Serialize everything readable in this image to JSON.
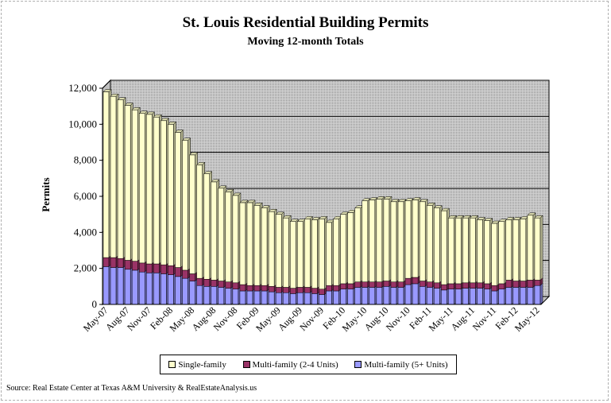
{
  "chart_data": {
    "type": "bar",
    "stacked": true,
    "title": "St. Louis Residential Building Permits",
    "subtitle": "Moving 12-month Totals",
    "ylabel": "Permits",
    "ylim": [
      0,
      12000
    ],
    "yticks": [
      0,
      2000,
      4000,
      6000,
      8000,
      10000,
      12000
    ],
    "ytick_labels": [
      "0",
      "2,000",
      "4,000",
      "6,000",
      "8,000",
      "10,000",
      "12,000"
    ],
    "xtick_labels": [
      "May-07",
      "Aug-07",
      "Nov-07",
      "Feb-08",
      "May-08",
      "Aug-08",
      "Nov-08",
      "Feb-09",
      "May-09",
      "Aug-09",
      "Nov-09",
      "Feb-10",
      "May-10",
      "Aug-10",
      "Nov-10",
      "Feb-11",
      "May-11",
      "Aug-11",
      "Nov-11",
      "Feb-12",
      "May-12"
    ],
    "categories": [
      "May-07",
      "Jun-07",
      "Jul-07",
      "Aug-07",
      "Sep-07",
      "Oct-07",
      "Nov-07",
      "Dec-07",
      "Jan-08",
      "Feb-08",
      "Mar-08",
      "Apr-08",
      "May-08",
      "Jun-08",
      "Jul-08",
      "Aug-08",
      "Sep-08",
      "Oct-08",
      "Nov-08",
      "Dec-08",
      "Jan-09",
      "Feb-09",
      "Mar-09",
      "Apr-09",
      "May-09",
      "Jun-09",
      "Jul-09",
      "Aug-09",
      "Sep-09",
      "Oct-09",
      "Nov-09",
      "Dec-09",
      "Jan-10",
      "Feb-10",
      "Mar-10",
      "Apr-10",
      "May-10",
      "Jun-10",
      "Jul-10",
      "Aug-10",
      "Sep-10",
      "Oct-10",
      "Nov-10",
      "Dec-10",
      "Jan-11",
      "Feb-11",
      "Mar-11",
      "Apr-11",
      "May-11",
      "Jun-11",
      "Jul-11",
      "Aug-11",
      "Sep-11",
      "Oct-11",
      "Nov-11",
      "Dec-11",
      "Jan-12",
      "Feb-12",
      "Mar-12",
      "Apr-12",
      "May-12"
    ],
    "series": [
      {
        "name": "Multi-family (5+ Units)",
        "color": "#9999ff",
        "values": [
          2100,
          2050,
          2050,
          1950,
          1900,
          1800,
          1750,
          1750,
          1700,
          1650,
          1550,
          1450,
          1300,
          1050,
          1000,
          1000,
          950,
          900,
          850,
          750,
          750,
          750,
          750,
          700,
          650,
          650,
          600,
          650,
          650,
          600,
          550,
          750,
          750,
          850,
          850,
          950,
          950,
          950,
          950,
          1000,
          950,
          950,
          1100,
          1150,
          1000,
          950,
          900,
          800,
          850,
          850,
          900,
          900,
          900,
          850,
          750,
          850,
          950,
          950,
          950,
          950,
          1050
        ]
      },
      {
        "name": "Multi-family (2-4 Units)",
        "color": "#993366",
        "values": [
          500,
          550,
          500,
          500,
          500,
          500,
          500,
          500,
          500,
          500,
          500,
          450,
          400,
          400,
          400,
          350,
          350,
          350,
          350,
          350,
          300,
          300,
          300,
          300,
          300,
          300,
          300,
          300,
          300,
          300,
          300,
          300,
          300,
          300,
          300,
          300,
          300,
          300,
          300,
          300,
          300,
          300,
          350,
          350,
          300,
          300,
          300,
          300,
          300,
          300,
          300,
          300,
          300,
          300,
          300,
          300,
          400,
          350,
          350,
          400,
          300
        ]
      },
      {
        "name": "Single-family",
        "color": "#ffffcc",
        "values": [
          9200,
          8950,
          8800,
          8600,
          8400,
          8300,
          8300,
          8150,
          8000,
          7850,
          7500,
          7200,
          6600,
          6300,
          5850,
          5450,
          5150,
          5000,
          4850,
          4550,
          4600,
          4450,
          4300,
          4150,
          4050,
          3850,
          3700,
          3650,
          3800,
          3800,
          3900,
          3500,
          3700,
          3850,
          3950,
          4100,
          4500,
          4550,
          4600,
          4550,
          4450,
          4450,
          4300,
          4300,
          4400,
          4250,
          4150,
          4100,
          3650,
          3650,
          3600,
          3600,
          3500,
          3500,
          3450,
          3450,
          3350,
          3400,
          3450,
          3600,
          3450
        ]
      }
    ]
  },
  "legend": {
    "items": [
      {
        "label": "Single-family",
        "color": "#ffffcc"
      },
      {
        "label": "Multi-family (2-4 Units)",
        "color": "#993366"
      },
      {
        "label": "Multi-family (5+ Units)",
        "color": "#9999ff"
      }
    ]
  },
  "source": "Source: Real Estate Center at Texas A&M University & RealEstateAnalysis.us"
}
